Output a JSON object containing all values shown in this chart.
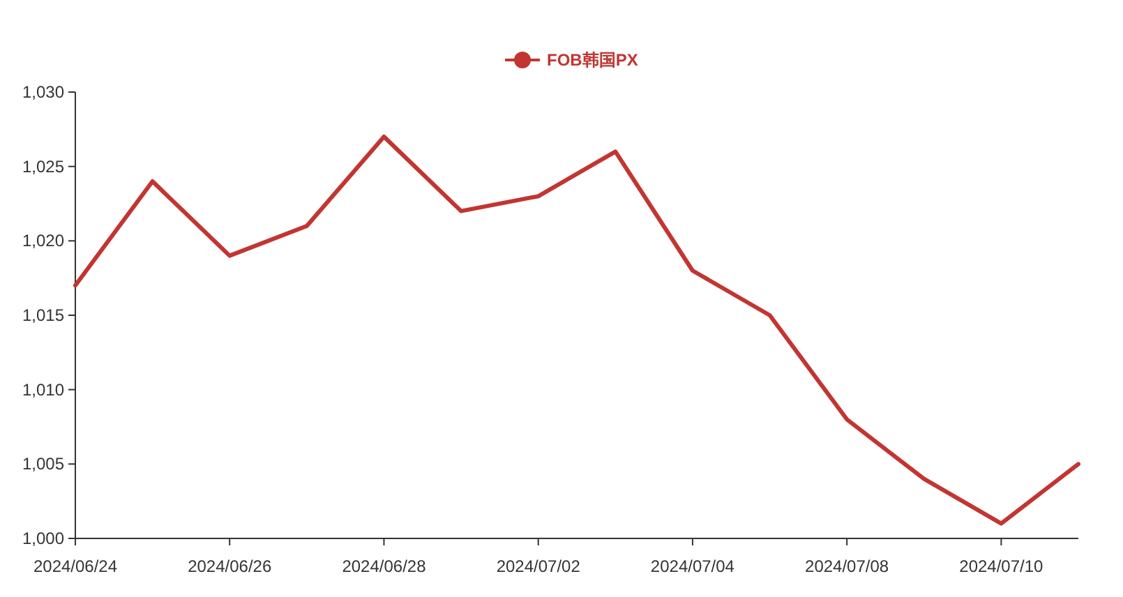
{
  "chart_data": {
    "type": "line",
    "categories": [
      "2024/06/24",
      null,
      "2024/06/26",
      null,
      "2024/06/28",
      null,
      "2024/07/02",
      null,
      "2024/07/04",
      null,
      "2024/07/08",
      null,
      "2024/07/10",
      null
    ],
    "series": [
      {
        "name": "FOB韩国PX",
        "color": "#c23531",
        "values": [
          1017,
          1024,
          1019,
          1021,
          1027,
          1022,
          1023,
          1026,
          1018,
          1015,
          1008,
          1004,
          1001,
          1005
        ]
      }
    ],
    "ylim": [
      1000,
      1030
    ],
    "yticks": [
      {
        "value": 1000,
        "label": "1,000"
      },
      {
        "value": 1005,
        "label": "1,005"
      },
      {
        "value": 1010,
        "label": "1,010"
      },
      {
        "value": 1015,
        "label": "1,015"
      },
      {
        "value": 1020,
        "label": "1,020"
      },
      {
        "value": 1025,
        "label": "1,025"
      },
      {
        "value": 1030,
        "label": "1,030"
      }
    ],
    "grid": false,
    "legend": "top"
  }
}
